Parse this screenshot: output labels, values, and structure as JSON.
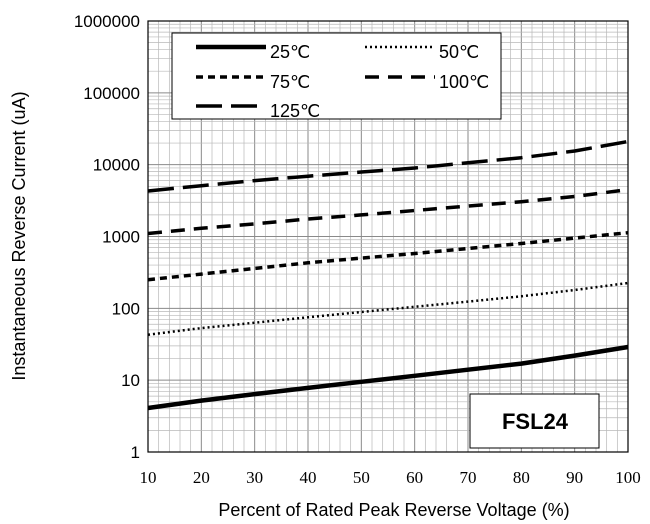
{
  "chart_data": {
    "type": "line",
    "title": "",
    "xlabel": "Percent of  Rated Peak Reverse Voltage (%)",
    "ylabel": "Instantaneous Reverse Current (uA)",
    "xlim": [
      10,
      100
    ],
    "ylim": [
      1,
      1000000
    ],
    "yscale": "log",
    "grid": true,
    "legend_position": "top-left",
    "annotation": "FSL24",
    "x_ticks": [
      "10",
      "20",
      "30",
      "40",
      "50",
      "60",
      "70",
      "80",
      "90",
      "100"
    ],
    "y_ticks": [
      "1",
      "10",
      "100",
      "1000",
      "10000",
      "100000",
      "1000000"
    ],
    "x": [
      10,
      20,
      30,
      40,
      50,
      60,
      70,
      80,
      90,
      100
    ],
    "series": [
      {
        "name": "25℃",
        "style": "solid",
        "values": [
          4.1,
          5.2,
          6.4,
          7.8,
          9.5,
          11.5,
          14,
          17,
          22,
          29
        ]
      },
      {
        "name": "50℃",
        "style": "dotted",
        "values": [
          43,
          53,
          63,
          75,
          89,
          105,
          124,
          147,
          180,
          225
        ]
      },
      {
        "name": "75℃",
        "style": "short-dash",
        "values": [
          250,
          300,
          360,
          430,
          500,
          580,
          680,
          800,
          950,
          1130
        ]
      },
      {
        "name": "100℃",
        "style": "dash",
        "values": [
          1100,
          1300,
          1500,
          1750,
          2000,
          2300,
          2650,
          3050,
          3600,
          4500
        ]
      },
      {
        "name": "125℃",
        "style": "long-dash",
        "values": [
          4300,
          5100,
          6000,
          6900,
          7900,
          9000,
          10600,
          12500,
          15500,
          21000
        ]
      }
    ]
  }
}
